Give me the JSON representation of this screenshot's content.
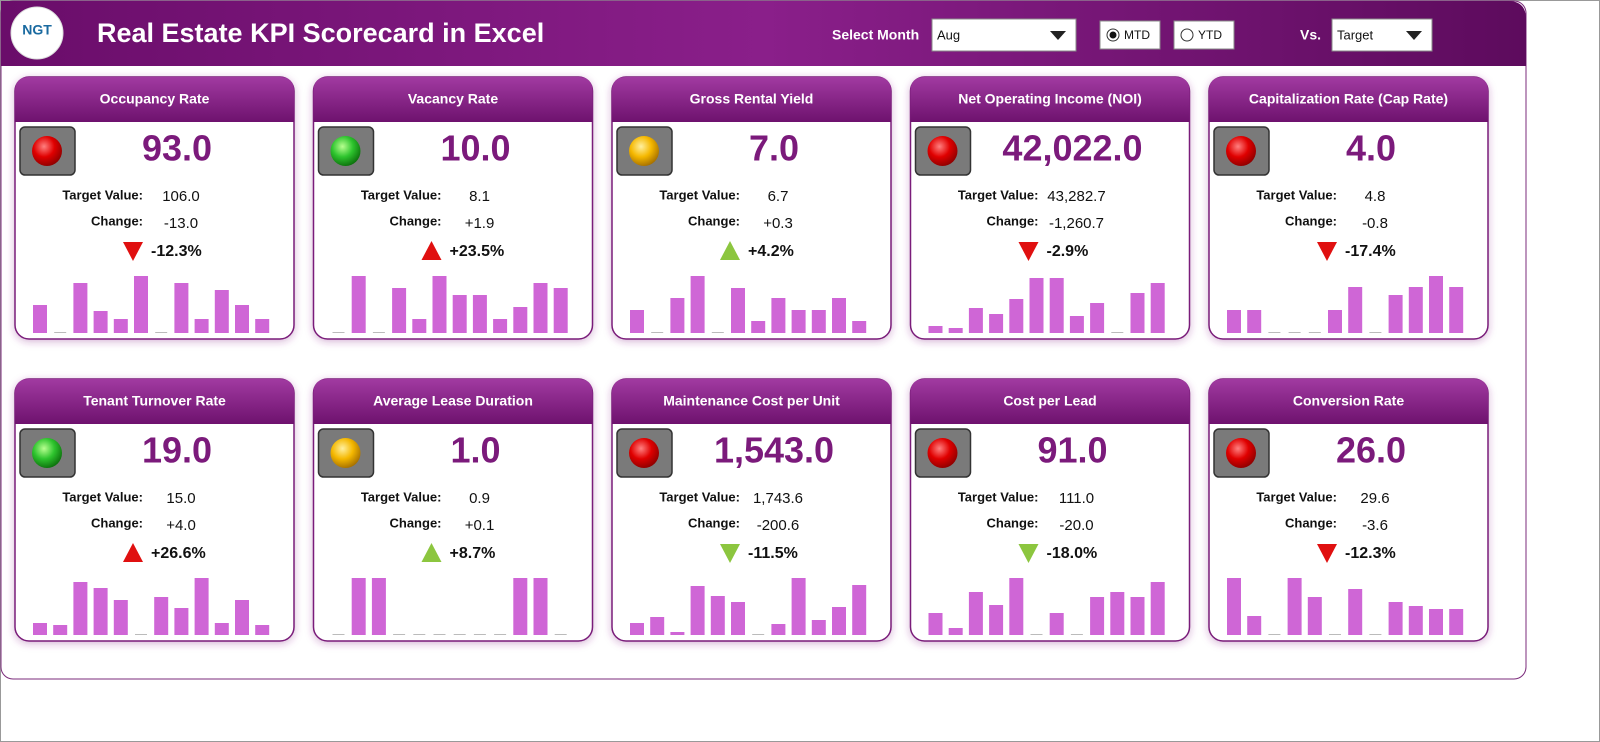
{
  "header": {
    "title": "Real Estate KPI Scorecard in Excel",
    "logo": "NGT",
    "month_label": "Select Month",
    "month": "Aug",
    "modes": [
      "MTD",
      "YTD"
    ],
    "selected_mode": "MTD",
    "vs_label": "Vs.",
    "vs": "Target"
  },
  "labels": {
    "target": "Target Value:",
    "change": "Change:"
  },
  "cards": [
    {
      "title": "Occupancy Rate",
      "value": "93.0",
      "target": "106.0",
      "change": "-13.0",
      "percent": "-12.3%",
      "status": "red",
      "arrow": "down",
      "arrow_color": "red",
      "bars": [
        28,
        0,
        50,
        22,
        14,
        57,
        0,
        50,
        14,
        43,
        28,
        14
      ]
    },
    {
      "title": "Vacancy Rate",
      "value": "10.0",
      "target": "8.1",
      "change": "+1.9",
      "percent": "+23.5%",
      "status": "green",
      "arrow": "up",
      "arrow_color": "red",
      "bars": [
        0,
        57,
        0,
        45,
        14,
        57,
        38,
        38,
        14,
        26,
        50,
        45
      ]
    },
    {
      "title": "Gross Rental Yield",
      "value": "7.0",
      "target": "6.7",
      "change": "+0.3",
      "percent": "+4.2%",
      "status": "yellow",
      "arrow": "up",
      "arrow_color": "green",
      "bars": [
        23,
        0,
        35,
        57,
        0,
        45,
        12,
        35,
        23,
        23,
        35,
        12
      ]
    },
    {
      "title": "Net Operating Income (NOI)",
      "value": "42,022.0",
      "target": "43,282.7",
      "change": "-1,260.7",
      "percent": "-2.9%",
      "status": "red",
      "arrow": "down",
      "arrow_color": "red",
      "bars": [
        7,
        5,
        25,
        19,
        34,
        55,
        55,
        17,
        30,
        0,
        40,
        50
      ]
    },
    {
      "title": "Capitalization Rate (Cap Rate)",
      "value": "4.0",
      "target": "4.8",
      "change": "-0.8",
      "percent": "-17.4%",
      "status": "red",
      "arrow": "down",
      "arrow_color": "red",
      "bars": [
        23,
        23,
        0,
        0,
        0,
        23,
        46,
        0,
        38,
        46,
        57,
        46
      ]
    },
    {
      "title": "Tenant Turnover Rate",
      "value": "19.0",
      "target": "15.0",
      "change": "+4.0",
      "percent": "+26.6%",
      "status": "green",
      "arrow": "up",
      "arrow_color": "red",
      "bars": [
        12,
        10,
        53,
        47,
        35,
        0,
        38,
        27,
        57,
        12,
        35,
        10
      ]
    },
    {
      "title": "Average Lease Duration",
      "value": "1.0",
      "target": "0.9",
      "change": "+0.1",
      "percent": "+8.7%",
      "status": "yellow",
      "arrow": "up",
      "arrow_color": "green",
      "bars": [
        0,
        57,
        57,
        0,
        0,
        0,
        0,
        0,
        0,
        57,
        57,
        0
      ]
    },
    {
      "title": "Maintenance Cost per Unit",
      "value": "1,543.0",
      "target": "1,743.6",
      "change": "-200.6",
      "percent": "-11.5%",
      "status": "red",
      "arrow": "down",
      "arrow_color": "green",
      "bars": [
        12,
        18,
        3,
        49,
        39,
        33,
        0,
        11,
        57,
        15,
        28,
        50
      ]
    },
    {
      "title": "Cost per Lead",
      "value": "91.0",
      "target": "111.0",
      "change": "-20.0",
      "percent": "-18.0%",
      "status": "red",
      "arrow": "down",
      "arrow_color": "green",
      "bars": [
        22,
        7,
        43,
        30,
        57,
        0,
        22,
        0,
        38,
        43,
        38,
        53
      ]
    },
    {
      "title": "Conversion Rate",
      "value": "26.0",
      "target": "29.6",
      "change": "-3.6",
      "percent": "-12.3%",
      "status": "red",
      "arrow": "down",
      "arrow_color": "red",
      "bars": [
        57,
        19,
        0,
        57,
        38,
        0,
        46,
        0,
        33,
        29,
        26,
        26
      ]
    }
  ]
}
